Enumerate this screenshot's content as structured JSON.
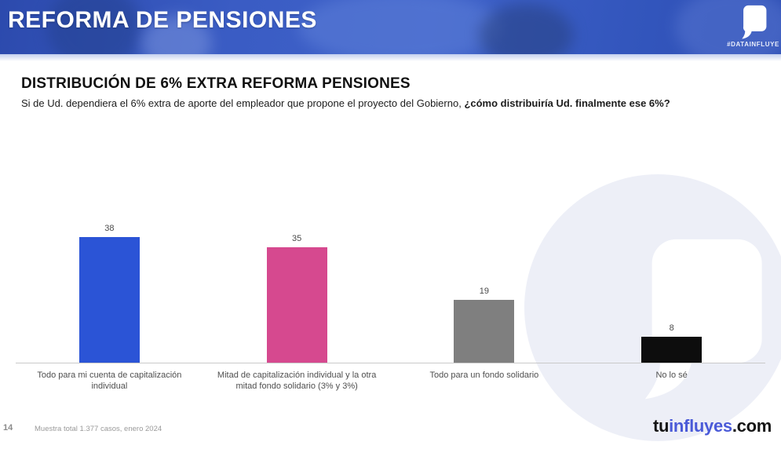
{
  "banner": {
    "title": "REFORMA DE PENSIONES",
    "hashtag": "#DATAINFLUYE"
  },
  "heading": {
    "title": "DISTRIBUCIÓN DE 6% EXTRA REFORMA PENSIONES",
    "subtitle_regular": "Si de Ud. dependiera el 6% extra de aporte del empleador que propone el proyecto del Gobierno, ",
    "subtitle_bold": "¿cómo distribuiría Ud. finalmente ese 6%?"
  },
  "chart_data": {
    "type": "bar",
    "title": "DISTRIBUCIÓN DE 6% EXTRA REFORMA PENSIONES",
    "categories": [
      "Todo para mi cuenta de capitalización individual",
      "Mitad de capitalización individual y la otra mitad fondo solidario (3% y 3%)",
      "Todo para un fondo solidario",
      "No lo sé"
    ],
    "values": [
      38,
      35,
      19,
      8
    ],
    "colors": [
      "#2b54d6",
      "#d6498f",
      "#7f7f7f",
      "#0d0d0d"
    ],
    "xlabel": "",
    "ylabel": "",
    "ylim": [
      0,
      40
    ],
    "grid": false,
    "legend": "none",
    "value_labels": true
  },
  "footer": {
    "page_number": "14",
    "note": "Muestra total 1.377 casos, enero 2024",
    "logo_part_tu": "tu",
    "logo_part_influyes": "influyes",
    "logo_part_com": ".com"
  }
}
